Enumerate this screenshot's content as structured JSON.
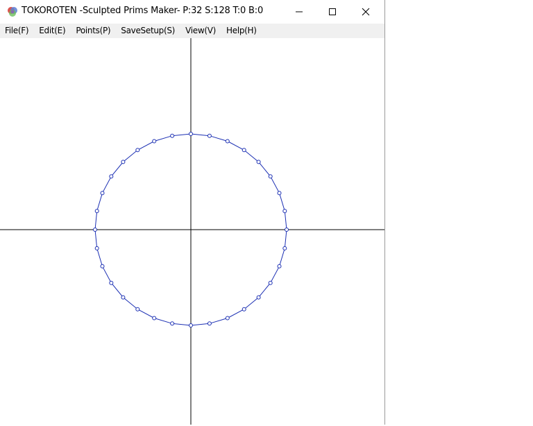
{
  "window": {
    "title": "TOKOROTEN -Sculpted Prims Maker- P:32 S:128 T:0 B:0",
    "icon": "tokoroten-app-icon",
    "controls": [
      "minimize-icon",
      "maximize-icon",
      "close-icon"
    ]
  },
  "menu": {
    "items": [
      "File(F)",
      "Edit(E)",
      "Points(P)",
      "SaveSetup(S)",
      "View(V)",
      "Help(H)"
    ]
  },
  "editor": {
    "point_count": 32,
    "shape": "circle",
    "curve_color": "#1b2fb3",
    "axis_color": "#000000"
  }
}
